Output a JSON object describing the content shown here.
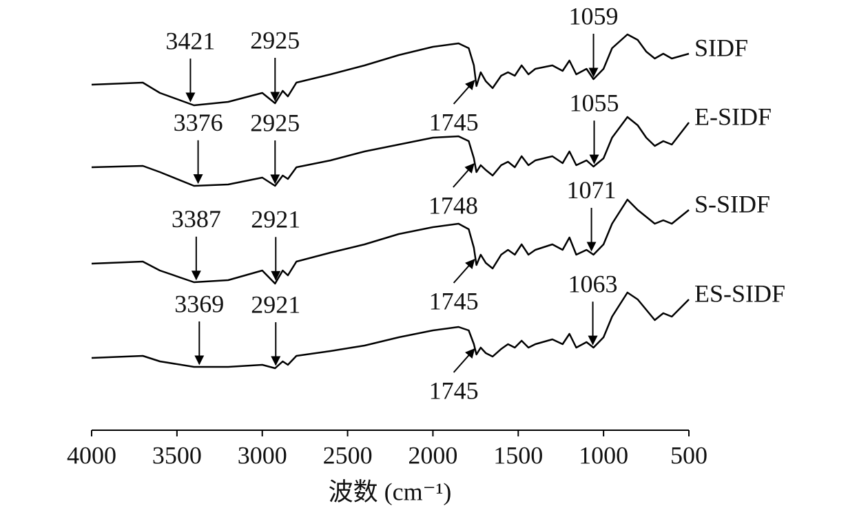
{
  "chart_data": {
    "type": "line",
    "x_label": "波数 (cm⁻¹)",
    "x": [
      4000,
      3700,
      3600,
      3400,
      3200,
      3000,
      2925,
      2880,
      2850,
      2800,
      2600,
      2400,
      2200,
      2000,
      1850,
      1790,
      1760,
      1745,
      1720,
      1690,
      1650,
      1600,
      1560,
      1520,
      1480,
      1440,
      1400,
      1300,
      1240,
      1200,
      1160,
      1100,
      1059,
      1000,
      950,
      860,
      800,
      750,
      700,
      650,
      600,
      500
    ],
    "xlim": [
      4000,
      500
    ],
    "xticks": [
      4000,
      3500,
      3000,
      2500,
      2000,
      1500,
      1000,
      500
    ],
    "ylim": [
      0,
      600
    ],
    "series": [
      {
        "name": "SIDF",
        "color": "#000000",
        "values": [
          502,
          505,
          490,
          472,
          477,
          490,
          475,
          493,
          485,
          505,
          517,
          530,
          545,
          557,
          562,
          555,
          530,
          500,
          520,
          507,
          497,
          515,
          520,
          515,
          530,
          517,
          525,
          530,
          522,
          537,
          517,
          525,
          510,
          525,
          555,
          575,
          567,
          550,
          540,
          547,
          540,
          547
        ],
        "peaks": [
          3421,
          2925,
          1059
        ],
        "carbonyl_peak": 1745
      },
      {
        "name": "E-SIDF",
        "color": "#000000",
        "values": [
          382,
          384,
          375,
          355,
          357,
          367,
          355,
          370,
          365,
          382,
          392,
          405,
          415,
          425,
          427,
          420,
          395,
          375,
          385,
          378,
          370,
          385,
          390,
          382,
          398,
          385,
          392,
          398,
          388,
          405,
          385,
          392,
          383,
          395,
          425,
          455,
          443,
          425,
          413,
          420,
          415,
          447
        ],
        "peaks": [
          3376,
          2925,
          1055
        ],
        "carbonyl_peak": 1748
      },
      {
        "name": "S-SIDF",
        "color": "#000000",
        "values": [
          242,
          245,
          232,
          215,
          218,
          232,
          213,
          232,
          225,
          245,
          258,
          270,
          285,
          295,
          300,
          292,
          265,
          240,
          255,
          243,
          235,
          255,
          262,
          255,
          270,
          255,
          262,
          270,
          262,
          280,
          255,
          262,
          255,
          270,
          300,
          335,
          320,
          310,
          300,
          305,
          300,
          320
        ],
        "peaks": [
          3387,
          2921,
          1071
        ],
        "carbonyl_peak": 1745
      },
      {
        "name": "ES-SIDF",
        "color": "#000000",
        "values": [
          105,
          108,
          100,
          92,
          92,
          95,
          90,
          100,
          95,
          108,
          115,
          123,
          135,
          145,
          150,
          145,
          125,
          110,
          120,
          112,
          107,
          118,
          125,
          120,
          130,
          120,
          125,
          132,
          125,
          140,
          120,
          128,
          120,
          135,
          165,
          200,
          190,
          175,
          160,
          170,
          165,
          190
        ],
        "peaks": [
          3369,
          2921,
          1063
        ],
        "carbonyl_peak": 1745
      }
    ]
  }
}
